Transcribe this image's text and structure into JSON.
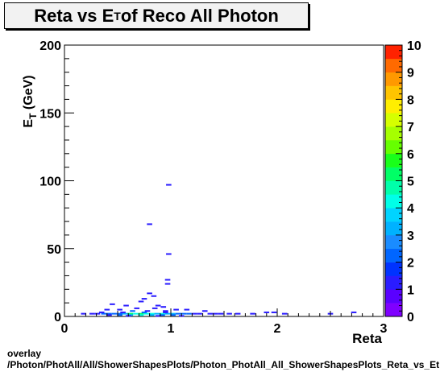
{
  "chart_data": {
    "type": "heatmap",
    "title_prefix": "Reta vs E",
    "title_sub": "T",
    "title_suffix": " of Reco All Photon",
    "xlabel": "Reta",
    "ylabel_main": "E",
    "ylabel_sub": "T",
    "ylabel_unit": " (GeV)",
    "xlim": [
      0,
      3
    ],
    "ylim": [
      0,
      200
    ],
    "x_ticks": [
      "0",
      "1",
      "2",
      "3"
    ],
    "y_ticks": [
      "0",
      "50",
      "100",
      "150",
      "200"
    ],
    "zlim": [
      0,
      10
    ],
    "z_ticks": [
      "0",
      "1",
      "2",
      "3",
      "4",
      "5",
      "6",
      "7",
      "8",
      "9",
      "10"
    ],
    "grid": false,
    "points": [
      [
        0.98,
        97,
        1
      ],
      [
        0.8,
        68,
        1
      ],
      [
        0.98,
        46,
        1
      ],
      [
        0.97,
        27,
        1
      ],
      [
        0.97,
        24,
        1
      ],
      [
        0.8,
        17,
        1
      ],
      [
        0.84,
        15,
        1
      ],
      [
        0.75,
        13,
        1
      ],
      [
        0.72,
        11,
        1
      ],
      [
        0.45,
        9,
        1
      ],
      [
        0.58,
        8,
        1
      ],
      [
        0.88,
        8,
        1
      ],
      [
        0.93,
        7,
        1
      ],
      [
        0.68,
        6,
        1
      ],
      [
        0.85,
        6,
        1
      ],
      [
        0.4,
        5,
        1
      ],
      [
        0.52,
        5,
        1
      ],
      [
        0.64,
        4,
        2
      ],
      [
        0.78,
        4,
        1
      ],
      [
        0.95,
        4,
        1
      ],
      [
        1.05,
        5,
        1
      ],
      [
        1.15,
        5,
        1
      ],
      [
        1.32,
        4,
        1
      ],
      [
        0.18,
        2,
        1
      ],
      [
        0.26,
        2,
        1
      ],
      [
        0.31,
        2,
        1
      ],
      [
        0.37,
        2,
        2
      ],
      [
        0.42,
        2,
        2
      ],
      [
        0.47,
        2,
        2
      ],
      [
        0.52,
        2,
        2
      ],
      [
        0.57,
        2,
        3
      ],
      [
        0.62,
        2,
        5
      ],
      [
        0.67,
        2,
        4
      ],
      [
        0.72,
        2,
        5
      ],
      [
        0.77,
        2,
        4
      ],
      [
        0.82,
        2,
        4
      ],
      [
        0.87,
        2,
        3
      ],
      [
        0.92,
        2,
        4
      ],
      [
        0.97,
        2,
        3
      ],
      [
        1.02,
        2,
        3
      ],
      [
        1.07,
        2,
        2
      ],
      [
        1.12,
        2,
        2
      ],
      [
        1.17,
        2,
        2
      ],
      [
        1.22,
        2,
        1
      ],
      [
        1.27,
        2,
        1
      ],
      [
        1.37,
        2,
        1
      ],
      [
        1.42,
        2,
        1
      ],
      [
        1.47,
        2,
        1
      ],
      [
        1.55,
        2,
        1
      ],
      [
        1.63,
        2,
        1
      ],
      [
        1.77,
        2,
        1
      ],
      [
        1.9,
        3,
        1
      ],
      [
        1.97,
        3,
        1
      ],
      [
        2.07,
        2,
        1
      ],
      [
        2.5,
        2,
        1
      ],
      [
        2.72,
        3,
        1
      ],
      [
        0.62,
        1,
        3
      ],
      [
        0.72,
        1,
        4
      ],
      [
        0.82,
        1,
        3
      ],
      [
        0.92,
        1,
        2
      ],
      [
        1.02,
        1,
        2
      ],
      [
        0.52,
        1,
        2
      ],
      [
        0.42,
        1,
        1
      ],
      [
        0.6,
        0.4,
        1
      ],
      [
        0.88,
        0.4,
        1
      ],
      [
        1.1,
        0.4,
        1
      ],
      [
        0.35,
        3,
        1
      ],
      [
        0.55,
        3,
        1
      ],
      [
        0.75,
        3,
        2
      ],
      [
        0.95,
        3,
        1
      ]
    ]
  },
  "footer": {
    "line1": "overlay",
    "line2": "/Photon/PhotAll/All/ShowerShapesPlots/Photon_PhotAll_All_ShowerShapesPlots_Reta_vs_Et"
  }
}
